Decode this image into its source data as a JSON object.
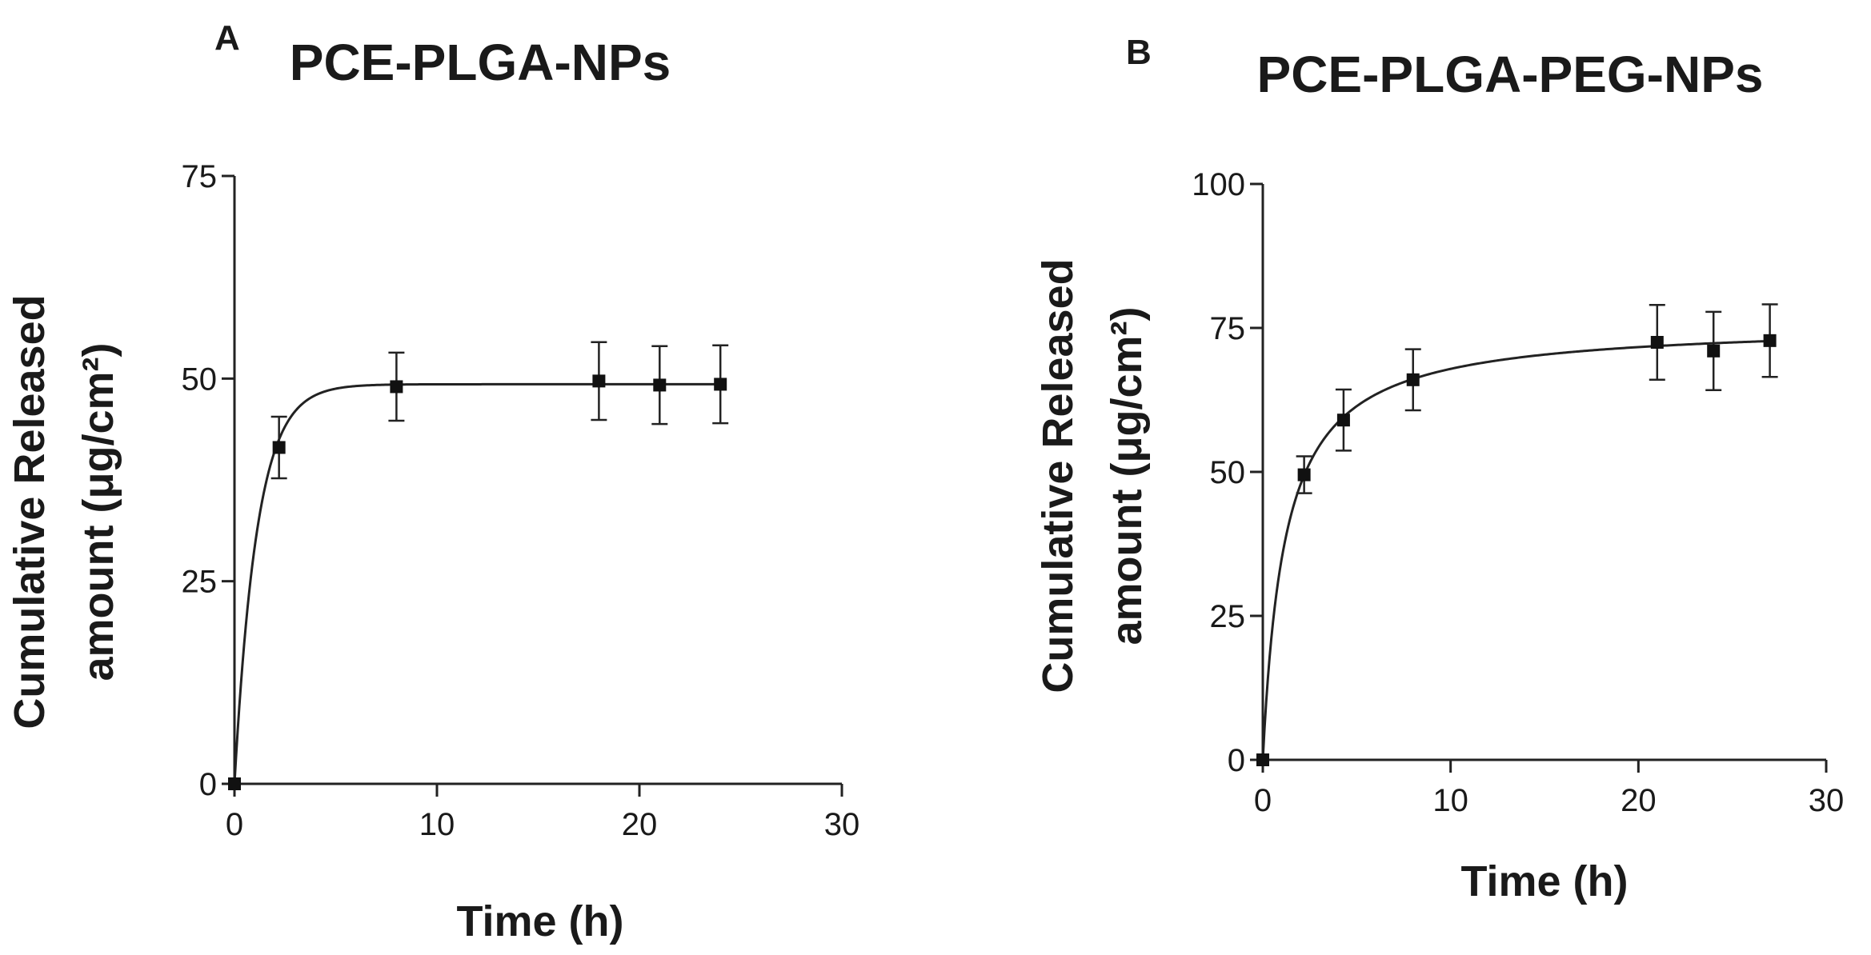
{
  "chart_data": [
    {
      "type": "scatter",
      "panel": "A",
      "title": "PCE-PLGA-NPs",
      "xlabel": "Time (h)",
      "ylabel_line1": "Cumulative Released",
      "ylabel_line2": "amount (μg/cm²)",
      "xlim": [
        0,
        30
      ],
      "ylim": [
        0,
        75
      ],
      "xticks": [
        0,
        10,
        20,
        30
      ],
      "yticks": [
        0,
        25,
        50,
        75
      ],
      "xtick_labels": [
        "0",
        "10",
        "20",
        "30"
      ],
      "ytick_labels": [
        "0",
        "25",
        "50",
        "75"
      ],
      "points": [
        {
          "x": 0,
          "y": 0,
          "err": 0
        },
        {
          "x": 2.2,
          "y": 41.5,
          "err": 3.8
        },
        {
          "x": 8,
          "y": 49,
          "err": 4.2
        },
        {
          "x": 18,
          "y": 49.7,
          "err": 4.8
        },
        {
          "x": 21,
          "y": 49.2,
          "err": 4.8
        },
        {
          "x": 24,
          "y": 49.3,
          "err": 4.8
        }
      ],
      "fit": {
        "model": "one-phase association",
        "plateau": 49.3,
        "k": 0.9,
        "x_max": 24
      }
    },
    {
      "type": "scatter",
      "panel": "B",
      "title": "PCE-PLGA-PEG-NPs",
      "xlabel": "Time (h)",
      "ylabel_line1": "Cumulative Released",
      "ylabel_line2": "amount (μg/cm²)",
      "xlim": [
        0,
        30
      ],
      "ylim": [
        0,
        100
      ],
      "xticks": [
        0,
        10,
        20,
        30
      ],
      "yticks": [
        0,
        25,
        50,
        75,
        100
      ],
      "xtick_labels": [
        "0",
        "10",
        "20",
        "30"
      ],
      "ytick_labels": [
        "0",
        "25",
        "50",
        "75",
        "100"
      ],
      "points": [
        {
          "x": 0,
          "y": 0,
          "err": 0
        },
        {
          "x": 2.2,
          "y": 49.5,
          "err": 3.2
        },
        {
          "x": 4.3,
          "y": 59,
          "err": 5.3
        },
        {
          "x": 8,
          "y": 66,
          "err": 5.3
        },
        {
          "x": 21,
          "y": 72.5,
          "err": 6.5
        },
        {
          "x": 24,
          "y": 71,
          "err": 6.8
        },
        {
          "x": 27,
          "y": 72.8,
          "err": 6.3
        }
      ],
      "fit": {
        "model": "hyperbolic",
        "bmax": 75.9,
        "kd": 1.18,
        "x_max": 27
      }
    }
  ]
}
